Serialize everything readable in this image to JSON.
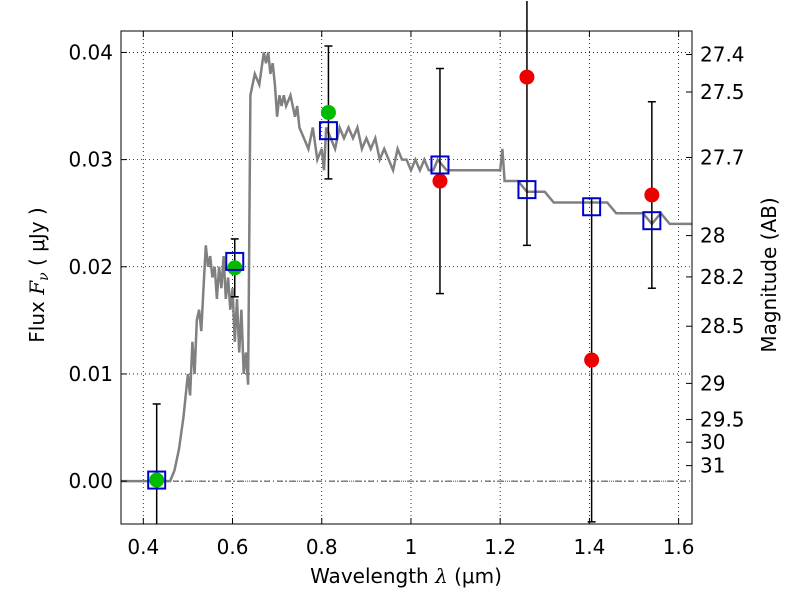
{
  "chart_data": {
    "type": "scatter",
    "title": "",
    "xlabel_text": "Wavelength",
    "xlabel_symbol": "λ",
    "xlabel_unit": "(μm)",
    "ylabel_text": "Flux",
    "ylabel_symbol": "F",
    "ylabel_subscript": "ν",
    "ylabel_unit": "( μJy )",
    "y2label": "Magnitude (AB)",
    "xlim": [
      0.35,
      1.63
    ],
    "ylim": [
      -0.004,
      0.042
    ],
    "grid": true,
    "x_ticks": [
      0.4,
      0.6,
      0.8,
      1.0,
      1.2,
      1.4,
      1.6
    ],
    "x_tick_labels": [
      "0.4",
      "0.6",
      "0.8",
      "1",
      "1.2",
      "1.4",
      "1.6"
    ],
    "y_ticks": [
      0.0,
      0.01,
      0.02,
      0.03,
      0.04
    ],
    "y_tick_labels": [
      "0.00",
      "0.01",
      "0.02",
      "0.03",
      "0.04"
    ],
    "magnitude_ticks": [
      {
        "label": "27.4",
        "value": 27.4
      },
      {
        "label": "27.5",
        "value": 27.5
      },
      {
        "label": "27.7",
        "value": 27.7
      },
      {
        "label": "28",
        "value": 28.0
      },
      {
        "label": "28.2",
        "value": 28.2
      },
      {
        "label": "28.5",
        "value": 28.5
      },
      {
        "label": "29",
        "value": 29.0
      },
      {
        "label": "29.5",
        "value": 29.5
      },
      {
        "label": "30",
        "value": 30.0
      },
      {
        "label": "31",
        "value": 31.0
      }
    ],
    "sed_model": {
      "color": "#808080",
      "x": [
        0.35,
        0.46,
        0.47,
        0.48,
        0.49,
        0.5,
        0.505,
        0.51,
        0.515,
        0.52,
        0.525,
        0.53,
        0.535,
        0.54,
        0.545,
        0.55,
        0.555,
        0.56,
        0.565,
        0.57,
        0.575,
        0.58,
        0.585,
        0.59,
        0.595,
        0.6,
        0.605,
        0.61,
        0.615,
        0.62,
        0.625,
        0.63,
        0.635,
        0.64,
        0.65,
        0.66,
        0.67,
        0.675,
        0.68,
        0.685,
        0.69,
        0.695,
        0.7,
        0.705,
        0.71,
        0.715,
        0.72,
        0.73,
        0.74,
        0.745,
        0.75,
        0.76,
        0.77,
        0.78,
        0.79,
        0.8,
        0.805,
        0.81,
        0.82,
        0.83,
        0.84,
        0.85,
        0.86,
        0.87,
        0.88,
        0.89,
        0.9,
        0.91,
        0.92,
        0.93,
        0.94,
        0.95,
        0.96,
        0.97,
        0.98,
        0.99,
        1.0,
        1.01,
        1.02,
        1.03,
        1.04,
        1.05,
        1.06,
        1.08,
        1.1,
        1.12,
        1.14,
        1.16,
        1.18,
        1.2,
        1.205,
        1.21,
        1.22,
        1.24,
        1.26,
        1.28,
        1.3,
        1.32,
        1.34,
        1.36,
        1.38,
        1.4,
        1.42,
        1.44,
        1.46,
        1.48,
        1.5,
        1.52,
        1.54,
        1.56,
        1.58,
        1.6,
        1.63
      ],
      "y": [
        0.0,
        0.0,
        0.001,
        0.003,
        0.006,
        0.01,
        0.008,
        0.013,
        0.01,
        0.015,
        0.016,
        0.014,
        0.018,
        0.022,
        0.02,
        0.021,
        0.019,
        0.02,
        0.017,
        0.02,
        0.018,
        0.021,
        0.017,
        0.019,
        0.016,
        0.018,
        0.013,
        0.017,
        0.012,
        0.016,
        0.01,
        0.012,
        0.009,
        0.036,
        0.038,
        0.037,
        0.04,
        0.039,
        0.04,
        0.038,
        0.039,
        0.037,
        0.034,
        0.036,
        0.035,
        0.036,
        0.035,
        0.036,
        0.034,
        0.035,
        0.033,
        0.032,
        0.031,
        0.033,
        0.03,
        0.031,
        0.029,
        0.033,
        0.032,
        0.031,
        0.033,
        0.032,
        0.033,
        0.032,
        0.033,
        0.031,
        0.032,
        0.031,
        0.032,
        0.03,
        0.031,
        0.03,
        0.029,
        0.031,
        0.03,
        0.03,
        0.029,
        0.03,
        0.029,
        0.03,
        0.029,
        0.029,
        0.03,
        0.029,
        0.029,
        0.029,
        0.029,
        0.029,
        0.029,
        0.029,
        0.031,
        0.028,
        0.028,
        0.028,
        0.027,
        0.027,
        0.027,
        0.026,
        0.026,
        0.026,
        0.026,
        0.026,
        0.026,
        0.026,
        0.025,
        0.025,
        0.025,
        0.025,
        0.024,
        0.025,
        0.024,
        0.024,
        0.024
      ]
    },
    "series": [
      {
        "marker": "circle",
        "color": "#00bb00",
        "x": [
          0.43,
          0.605,
          0.815
        ],
        "y": [
          0.0001,
          0.0199,
          0.0344
        ],
        "yerr": [
          0.0071,
          0.0027,
          0.0062
        ]
      },
      {
        "marker": "circle",
        "color": "#ee0000",
        "x": [
          1.065,
          1.26,
          1.405,
          1.54
        ],
        "y": [
          0.028,
          0.0377,
          0.0113,
          0.0267
        ],
        "yerr_low": [
          0.0105,
          0.0157,
          0.0151,
          0.0087
        ],
        "yerr_high": [
          0.0105,
          0.0157,
          0.0151,
          0.0087
        ]
      },
      {
        "marker": "open-square",
        "color": "#0000cc",
        "x": [
          0.43,
          0.605,
          0.815,
          1.065,
          1.26,
          1.405,
          1.54
        ],
        "y": [
          0.0001,
          0.0205,
          0.0327,
          0.0295,
          0.0272,
          0.0256,
          0.0243
        ]
      }
    ]
  }
}
